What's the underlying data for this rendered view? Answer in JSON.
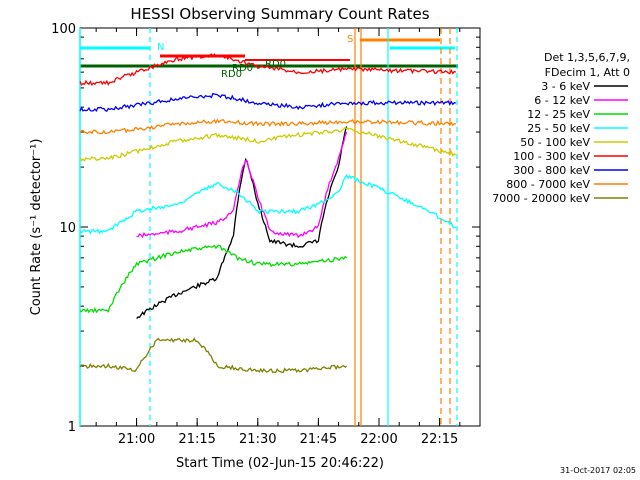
{
  "chart_data": {
    "type": "line",
    "title": "HESSI Observing Summary Count Rates",
    "xlabel": "Start Time (02-Jun-15 20:46:22)",
    "ylabel": "Count Rate (s⁻¹ detector⁻¹)",
    "yscale": "log",
    "ylim": [
      1,
      100
    ],
    "xlim": [
      "20:46",
      "22:25"
    ],
    "x_ticks": [
      "21:00",
      "21:15",
      "21:30",
      "21:45",
      "22:00",
      "22:15"
    ],
    "y_ticks": [
      "1",
      "10",
      "100"
    ],
    "grid": false,
    "legend": {
      "placement": "right",
      "header": [
        "Det 1,3,5,6,7,9,",
        "FDecim 1, Att 0"
      ],
      "entries": [
        {
          "label": "3 - 6 keV",
          "color": "#000000"
        },
        {
          "label": "6 - 12 keV",
          "color": "#ff00ff"
        },
        {
          "label": "12 - 25 keV",
          "color": "#00dd00"
        },
        {
          "label": "25 - 50 keV",
          "color": "#00ffff"
        },
        {
          "label": "50 - 100 keV",
          "color": "#cccc00"
        },
        {
          "label": "100 - 300 keV",
          "color": "#ff0000"
        },
        {
          "label": "300 - 800 keV",
          "color": "#0000ff"
        },
        {
          "label": "800 - 7000 keV",
          "color": "#ff8000"
        },
        {
          "label": "7000 - 20000 keV",
          "color": "#808000"
        }
      ]
    },
    "series": [
      {
        "name": "3 - 6 keV",
        "color": "#000000",
        "points": [
          [
            "21:00",
            3.5
          ],
          [
            "21:10",
            4.6
          ],
          [
            "21:20",
            5.5
          ],
          [
            "21:24",
            9.0
          ],
          [
            "21:27",
            22
          ],
          [
            "21:30",
            13
          ],
          [
            "21:33",
            8.5
          ],
          [
            "21:40",
            8.0
          ],
          [
            "21:45",
            8.5
          ],
          [
            "21:50",
            20
          ],
          [
            "21:52",
            32
          ]
        ]
      },
      {
        "name": "6 - 12 keV",
        "color": "#ff00ff",
        "points": [
          [
            "21:00",
            9.0
          ],
          [
            "21:10",
            9.5
          ],
          [
            "21:20",
            10.5
          ],
          [
            "21:24",
            12
          ],
          [
            "21:27",
            22
          ],
          [
            "21:30",
            14
          ],
          [
            "21:33",
            9.5
          ],
          [
            "21:40",
            9.0
          ],
          [
            "21:45",
            10
          ],
          [
            "21:50",
            22
          ],
          [
            "21:52",
            30
          ]
        ]
      },
      {
        "name": "12 - 25 keV",
        "color": "#00dd00",
        "points": [
          [
            "20:46",
            3.8
          ],
          [
            "20:53",
            3.8
          ],
          [
            "21:00",
            6.5
          ],
          [
            "21:10",
            7.5
          ],
          [
            "21:20",
            8.0
          ],
          [
            "21:25",
            7.0
          ],
          [
            "21:30",
            6.5
          ],
          [
            "21:40",
            6.5
          ],
          [
            "21:52",
            7.0
          ]
        ]
      },
      {
        "name": "25 - 50 keV",
        "color": "#00ffff",
        "points": [
          [
            "20:46",
            9.5
          ],
          [
            "20:53",
            9.5
          ],
          [
            "21:00",
            12.0
          ],
          [
            "21:10",
            13.0
          ],
          [
            "21:20",
            16.5
          ],
          [
            "21:25",
            15.0
          ],
          [
            "21:30",
            12.0
          ],
          [
            "21:40",
            12.0
          ],
          [
            "21:45",
            13.0
          ],
          [
            "21:50",
            15.0
          ],
          [
            "21:52",
            18.0
          ],
          [
            "22:19",
            10.0
          ]
        ]
      },
      {
        "name": "50 - 100 keV",
        "color": "#cccc00",
        "points": [
          [
            "20:46",
            22.0
          ],
          [
            "20:53",
            22.0
          ],
          [
            "21:00",
            24.0
          ],
          [
            "21:10",
            27.0
          ],
          [
            "21:20",
            29.0
          ],
          [
            "21:30",
            27.0
          ],
          [
            "21:40",
            29.0
          ],
          [
            "21:52",
            31.0
          ],
          [
            "22:19",
            23.0
          ]
        ]
      },
      {
        "name": "100 - 300 keV",
        "color": "#ff0000",
        "points": [
          [
            "20:46",
            53
          ],
          [
            "20:53",
            53
          ],
          [
            "21:00",
            60
          ],
          [
            "21:10",
            70
          ],
          [
            "21:20",
            73
          ],
          [
            "21:30",
            64
          ],
          [
            "21:40",
            60
          ],
          [
            "21:52",
            62
          ],
          [
            "22:19",
            60
          ]
        ]
      },
      {
        "name": "300 - 800 keV",
        "color": "#0000ff",
        "points": [
          [
            "20:46",
            39
          ],
          [
            "20:53",
            39
          ],
          [
            "21:00",
            41
          ],
          [
            "21:10",
            44
          ],
          [
            "21:20",
            46
          ],
          [
            "21:30",
            42
          ],
          [
            "21:40",
            40
          ],
          [
            "21:52",
            42
          ],
          [
            "22:19",
            42
          ]
        ]
      },
      {
        "name": "800 - 7000 keV",
        "color": "#ff8000",
        "points": [
          [
            "20:46",
            30
          ],
          [
            "20:53",
            30
          ],
          [
            "21:00",
            31
          ],
          [
            "21:10",
            33
          ],
          [
            "21:20",
            34
          ],
          [
            "21:30",
            33
          ],
          [
            "21:40",
            33
          ],
          [
            "21:52",
            34
          ],
          [
            "22:19",
            33
          ]
        ]
      },
      {
        "name": "7000 - 20000 keV",
        "color": "#808000",
        "points": [
          [
            "20:46",
            2.0
          ],
          [
            "20:53",
            2.0
          ],
          [
            "21:00",
            1.9
          ],
          [
            "21:05",
            2.7
          ],
          [
            "21:15",
            2.7
          ],
          [
            "21:20",
            2.0
          ],
          [
            "21:30",
            1.9
          ],
          [
            "21:40",
            1.9
          ],
          [
            "21:52",
            2.0
          ]
        ]
      }
    ],
    "annotations": {
      "flags": [
        "N",
        "S",
        "RD0",
        "RD0",
        "RD0"
      ]
    },
    "timestamp": "31-Oct-2017 02:05"
  },
  "colors": {
    "night": "#00ffff",
    "saa": "#ff8000",
    "attenuator": "#006000",
    "decimation": "#ff0000"
  }
}
